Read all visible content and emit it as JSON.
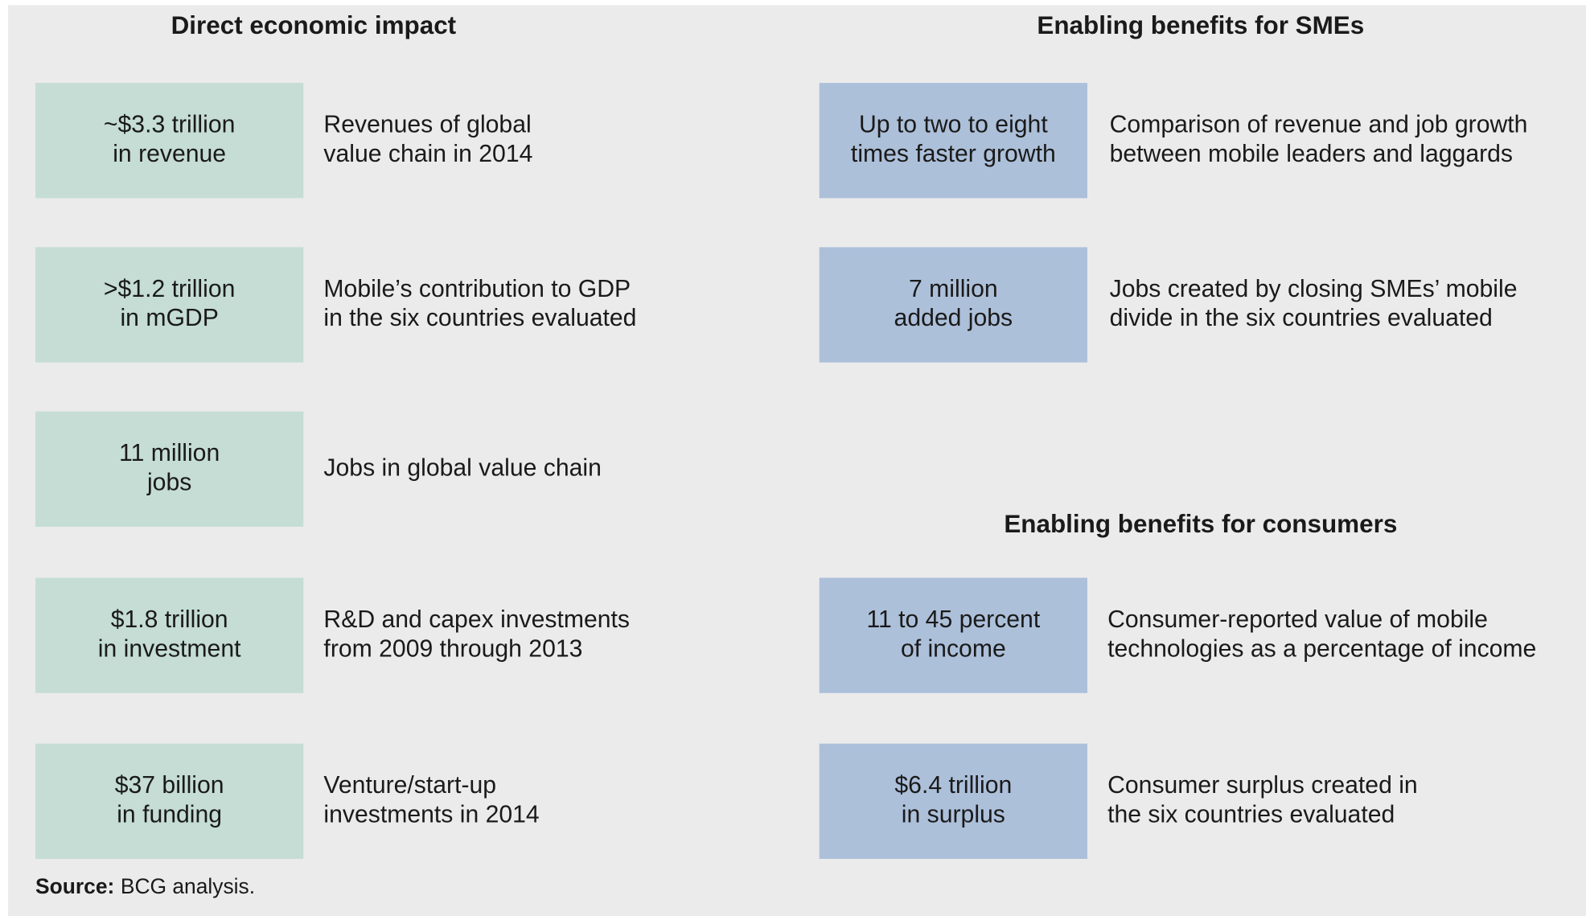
{
  "sections": [
    {
      "heading": "Direct economic impact",
      "items": [
        {
          "box": [
            "~$3.3 trillion",
            "in revenue"
          ],
          "desc": [
            "Revenues of global",
            "value chain in 2014"
          ]
        },
        {
          "box": [
            ">$1.2 trillion",
            "in mGDP"
          ],
          "desc": [
            "Mobile’s contribution to GDP",
            "in the six countries evaluated"
          ]
        },
        {
          "box": [
            "11 million",
            "jobs"
          ],
          "desc": [
            "Jobs in global value chain"
          ]
        },
        {
          "box": [
            "$1.8 trillion",
            "in investment"
          ],
          "desc": [
            "R&D and capex investments",
            "from 2009 through 2013"
          ]
        },
        {
          "box": [
            "$37 billion",
            "in funding"
          ],
          "desc": [
            "Venture/start-up",
            "investments in 2014"
          ]
        }
      ]
    },
    {
      "heading": "Enabling benefits for SMEs",
      "items": [
        {
          "box": [
            "Up to two to eight",
            "times faster growth"
          ],
          "desc": [
            "Comparison of revenue and job growth",
            "between mobile leaders and laggards"
          ]
        },
        {
          "box": [
            "7 million",
            "added jobs"
          ],
          "desc": [
            "Jobs created by closing SMEs’ mobile",
            "divide in the six countries evaluated"
          ]
        }
      ]
    },
    {
      "heading": "Enabling benefits for consumers",
      "items": [
        {
          "box": [
            "11 to 45 percent",
            "of income"
          ],
          "desc": [
            "Consumer-reported value of mobile",
            "technologies as a percentage of income"
          ]
        },
        {
          "box": [
            "$6.4 trillion",
            "in surplus"
          ],
          "desc": [
            "Consumer surplus created in",
            "the six countries evaluated"
          ]
        }
      ]
    }
  ],
  "source": {
    "label": "Source:",
    "text": "BCG analysis."
  }
}
